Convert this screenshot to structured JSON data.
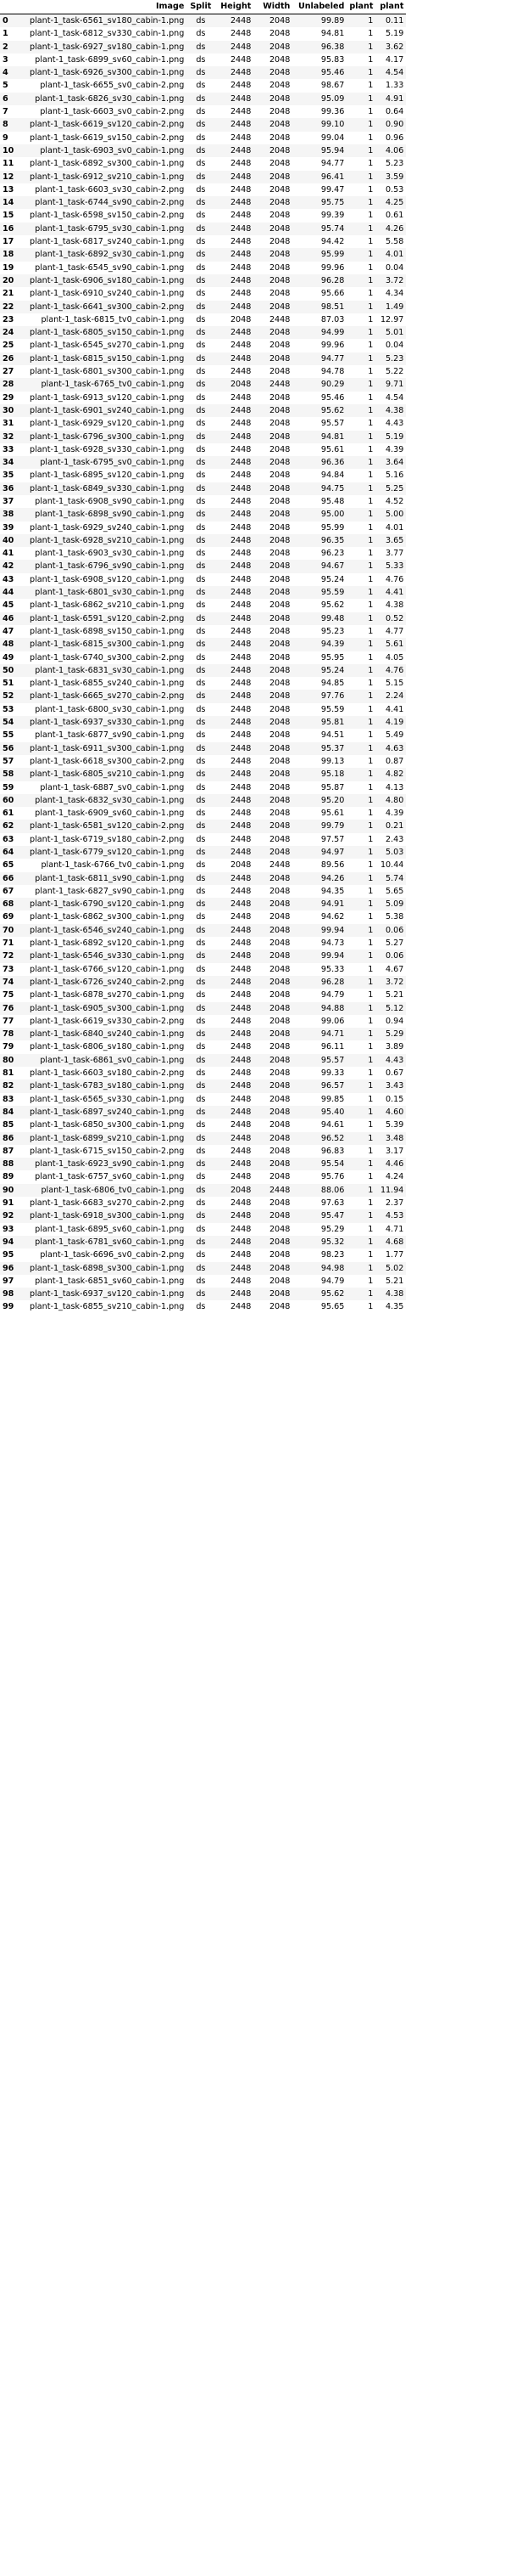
{
  "columns": [
    "",
    "Image",
    "Split",
    "Height",
    "Width",
    "Unlabeled",
    "plant",
    "plant"
  ],
  "rows": [
    [
      "0",
      "plant-1_task-6561_sv180_cabin-1.png",
      "ds",
      "2448",
      "2048",
      "99.89",
      "1",
      "0.11"
    ],
    [
      "1",
      "plant-1_task-6812_sv330_cabin-1.png",
      "ds",
      "2448",
      "2048",
      "94.81",
      "1",
      "5.19"
    ],
    [
      "2",
      "plant-1_task-6927_sv180_cabin-1.png",
      "ds",
      "2448",
      "2048",
      "96.38",
      "1",
      "3.62"
    ],
    [
      "3",
      "plant-1_task-6899_sv60_cabin-1.png",
      "ds",
      "2448",
      "2048",
      "95.83",
      "1",
      "4.17"
    ],
    [
      "4",
      "plant-1_task-6926_sv300_cabin-1.png",
      "ds",
      "2448",
      "2048",
      "95.46",
      "1",
      "4.54"
    ],
    [
      "5",
      "plant-1_task-6655_sv0_cabin-2.png",
      "ds",
      "2448",
      "2048",
      "98.67",
      "1",
      "1.33"
    ],
    [
      "6",
      "plant-1_task-6826_sv30_cabin-1.png",
      "ds",
      "2448",
      "2048",
      "95.09",
      "1",
      "4.91"
    ],
    [
      "7",
      "plant-1_task-6603_sv0_cabin-2.png",
      "ds",
      "2448",
      "2048",
      "99.36",
      "1",
      "0.64"
    ],
    [
      "8",
      "plant-1_task-6619_sv120_cabin-2.png",
      "ds",
      "2448",
      "2048",
      "99.10",
      "1",
      "0.90"
    ],
    [
      "9",
      "plant-1_task-6619_sv150_cabin-2.png",
      "ds",
      "2448",
      "2048",
      "99.04",
      "1",
      "0.96"
    ],
    [
      "10",
      "plant-1_task-6903_sv0_cabin-1.png",
      "ds",
      "2448",
      "2048",
      "95.94",
      "1",
      "4.06"
    ],
    [
      "11",
      "plant-1_task-6892_sv300_cabin-1.png",
      "ds",
      "2448",
      "2048",
      "94.77",
      "1",
      "5.23"
    ],
    [
      "12",
      "plant-1_task-6912_sv210_cabin-1.png",
      "ds",
      "2448",
      "2048",
      "96.41",
      "1",
      "3.59"
    ],
    [
      "13",
      "plant-1_task-6603_sv30_cabin-2.png",
      "ds",
      "2448",
      "2048",
      "99.47",
      "1",
      "0.53"
    ],
    [
      "14",
      "plant-1_task-6744_sv90_cabin-2.png",
      "ds",
      "2448",
      "2048",
      "95.75",
      "1",
      "4.25"
    ],
    [
      "15",
      "plant-1_task-6598_sv150_cabin-2.png",
      "ds",
      "2448",
      "2048",
      "99.39",
      "1",
      "0.61"
    ],
    [
      "16",
      "plant-1_task-6795_sv30_cabin-1.png",
      "ds",
      "2448",
      "2048",
      "95.74",
      "1",
      "4.26"
    ],
    [
      "17",
      "plant-1_task-6817_sv240_cabin-1.png",
      "ds",
      "2448",
      "2048",
      "94.42",
      "1",
      "5.58"
    ],
    [
      "18",
      "plant-1_task-6892_sv30_cabin-1.png",
      "ds",
      "2448",
      "2048",
      "95.99",
      "1",
      "4.01"
    ],
    [
      "19",
      "plant-1_task-6545_sv90_cabin-1.png",
      "ds",
      "2448",
      "2048",
      "99.96",
      "1",
      "0.04"
    ],
    [
      "20",
      "plant-1_task-6906_sv180_cabin-1.png",
      "ds",
      "2448",
      "2048",
      "96.28",
      "1",
      "3.72"
    ],
    [
      "21",
      "plant-1_task-6910_sv240_cabin-1.png",
      "ds",
      "2448",
      "2048",
      "95.66",
      "1",
      "4.34"
    ],
    [
      "22",
      "plant-1_task-6641_sv300_cabin-2.png",
      "ds",
      "2448",
      "2048",
      "98.51",
      "1",
      "1.49"
    ],
    [
      "23",
      "plant-1_task-6815_tv0_cabin-1.png",
      "ds",
      "2048",
      "2448",
      "87.03",
      "1",
      "12.97"
    ],
    [
      "24",
      "plant-1_task-6805_sv150_cabin-1.png",
      "ds",
      "2448",
      "2048",
      "94.99",
      "1",
      "5.01"
    ],
    [
      "25",
      "plant-1_task-6545_sv270_cabin-1.png",
      "ds",
      "2448",
      "2048",
      "99.96",
      "1",
      "0.04"
    ],
    [
      "26",
      "plant-1_task-6815_sv150_cabin-1.png",
      "ds",
      "2448",
      "2048",
      "94.77",
      "1",
      "5.23"
    ],
    [
      "27",
      "plant-1_task-6801_sv300_cabin-1.png",
      "ds",
      "2448",
      "2048",
      "94.78",
      "1",
      "5.22"
    ],
    [
      "28",
      "plant-1_task-6765_tv0_cabin-1.png",
      "ds",
      "2048",
      "2448",
      "90.29",
      "1",
      "9.71"
    ],
    [
      "29",
      "plant-1_task-6913_sv120_cabin-1.png",
      "ds",
      "2448",
      "2048",
      "95.46",
      "1",
      "4.54"
    ],
    [
      "30",
      "plant-1_task-6901_sv240_cabin-1.png",
      "ds",
      "2448",
      "2048",
      "95.62",
      "1",
      "4.38"
    ],
    [
      "31",
      "plant-1_task-6929_sv120_cabin-1.png",
      "ds",
      "2448",
      "2048",
      "95.57",
      "1",
      "4.43"
    ],
    [
      "32",
      "plant-1_task-6796_sv300_cabin-1.png",
      "ds",
      "2448",
      "2048",
      "94.81",
      "1",
      "5.19"
    ],
    [
      "33",
      "plant-1_task-6928_sv330_cabin-1.png",
      "ds",
      "2448",
      "2048",
      "95.61",
      "1",
      "4.39"
    ],
    [
      "34",
      "plant-1_task-6795_sv0_cabin-1.png",
      "ds",
      "2448",
      "2048",
      "96.36",
      "1",
      "3.64"
    ],
    [
      "35",
      "plant-1_task-6895_sv120_cabin-1.png",
      "ds",
      "2448",
      "2048",
      "94.84",
      "1",
      "5.16"
    ],
    [
      "36",
      "plant-1_task-6849_sv330_cabin-1.png",
      "ds",
      "2448",
      "2048",
      "94.75",
      "1",
      "5.25"
    ],
    [
      "37",
      "plant-1_task-6908_sv90_cabin-1.png",
      "ds",
      "2448",
      "2048",
      "95.48",
      "1",
      "4.52"
    ],
    [
      "38",
      "plant-1_task-6898_sv90_cabin-1.png",
      "ds",
      "2448",
      "2048",
      "95.00",
      "1",
      "5.00"
    ],
    [
      "39",
      "plant-1_task-6929_sv240_cabin-1.png",
      "ds",
      "2448",
      "2048",
      "95.99",
      "1",
      "4.01"
    ],
    [
      "40",
      "plant-1_task-6928_sv210_cabin-1.png",
      "ds",
      "2448",
      "2048",
      "96.35",
      "1",
      "3.65"
    ],
    [
      "41",
      "plant-1_task-6903_sv30_cabin-1.png",
      "ds",
      "2448",
      "2048",
      "96.23",
      "1",
      "3.77"
    ],
    [
      "42",
      "plant-1_task-6796_sv90_cabin-1.png",
      "ds",
      "2448",
      "2048",
      "94.67",
      "1",
      "5.33"
    ],
    [
      "43",
      "plant-1_task-6908_sv120_cabin-1.png",
      "ds",
      "2448",
      "2048",
      "95.24",
      "1",
      "4.76"
    ],
    [
      "44",
      "plant-1_task-6801_sv30_cabin-1.png",
      "ds",
      "2448",
      "2048",
      "95.59",
      "1",
      "4.41"
    ],
    [
      "45",
      "plant-1_task-6862_sv210_cabin-1.png",
      "ds",
      "2448",
      "2048",
      "95.62",
      "1",
      "4.38"
    ],
    [
      "46",
      "plant-1_task-6591_sv120_cabin-2.png",
      "ds",
      "2448",
      "2048",
      "99.48",
      "1",
      "0.52"
    ],
    [
      "47",
      "plant-1_task-6898_sv150_cabin-1.png",
      "ds",
      "2448",
      "2048",
      "95.23",
      "1",
      "4.77"
    ],
    [
      "48",
      "plant-1_task-6815_sv300_cabin-1.png",
      "ds",
      "2448",
      "2048",
      "94.39",
      "1",
      "5.61"
    ],
    [
      "49",
      "plant-1_task-6740_sv300_cabin-2.png",
      "ds",
      "2448",
      "2048",
      "95.95",
      "1",
      "4.05"
    ],
    [
      "50",
      "plant-1_task-6831_sv30_cabin-1.png",
      "ds",
      "2448",
      "2048",
      "95.24",
      "1",
      "4.76"
    ],
    [
      "51",
      "plant-1_task-6855_sv240_cabin-1.png",
      "ds",
      "2448",
      "2048",
      "94.85",
      "1",
      "5.15"
    ],
    [
      "52",
      "plant-1_task-6665_sv270_cabin-2.png",
      "ds",
      "2448",
      "2048",
      "97.76",
      "1",
      "2.24"
    ],
    [
      "53",
      "plant-1_task-6800_sv30_cabin-1.png",
      "ds",
      "2448",
      "2048",
      "95.59",
      "1",
      "4.41"
    ],
    [
      "54",
      "plant-1_task-6937_sv330_cabin-1.png",
      "ds",
      "2448",
      "2048",
      "95.81",
      "1",
      "4.19"
    ],
    [
      "55",
      "plant-1_task-6877_sv90_cabin-1.png",
      "ds",
      "2448",
      "2048",
      "94.51",
      "1",
      "5.49"
    ],
    [
      "56",
      "plant-1_task-6911_sv300_cabin-1.png",
      "ds",
      "2448",
      "2048",
      "95.37",
      "1",
      "4.63"
    ],
    [
      "57",
      "plant-1_task-6618_sv300_cabin-2.png",
      "ds",
      "2448",
      "2048",
      "99.13",
      "1",
      "0.87"
    ],
    [
      "58",
      "plant-1_task-6805_sv210_cabin-1.png",
      "ds",
      "2448",
      "2048",
      "95.18",
      "1",
      "4.82"
    ],
    [
      "59",
      "plant-1_task-6887_sv0_cabin-1.png",
      "ds",
      "2448",
      "2048",
      "95.87",
      "1",
      "4.13"
    ],
    [
      "60",
      "plant-1_task-6832_sv30_cabin-1.png",
      "ds",
      "2448",
      "2048",
      "95.20",
      "1",
      "4.80"
    ],
    [
      "61",
      "plant-1_task-6909_sv60_cabin-1.png",
      "ds",
      "2448",
      "2048",
      "95.61",
      "1",
      "4.39"
    ],
    [
      "62",
      "plant-1_task-6581_sv120_cabin-2.png",
      "ds",
      "2448",
      "2048",
      "99.79",
      "1",
      "0.21"
    ],
    [
      "63",
      "plant-1_task-6719_sv180_cabin-2.png",
      "ds",
      "2448",
      "2048",
      "97.57",
      "1",
      "2.43"
    ],
    [
      "64",
      "plant-1_task-6779_sv120_cabin-1.png",
      "ds",
      "2448",
      "2048",
      "94.97",
      "1",
      "5.03"
    ],
    [
      "65",
      "plant-1_task-6766_tv0_cabin-1.png",
      "ds",
      "2048",
      "2448",
      "89.56",
      "1",
      "10.44"
    ],
    [
      "66",
      "plant-1_task-6811_sv90_cabin-1.png",
      "ds",
      "2448",
      "2048",
      "94.26",
      "1",
      "5.74"
    ],
    [
      "67",
      "plant-1_task-6827_sv90_cabin-1.png",
      "ds",
      "2448",
      "2048",
      "94.35",
      "1",
      "5.65"
    ],
    [
      "68",
      "plant-1_task-6790_sv120_cabin-1.png",
      "ds",
      "2448",
      "2048",
      "94.91",
      "1",
      "5.09"
    ],
    [
      "69",
      "plant-1_task-6862_sv300_cabin-1.png",
      "ds",
      "2448",
      "2048",
      "94.62",
      "1",
      "5.38"
    ],
    [
      "70",
      "plant-1_task-6546_sv240_cabin-1.png",
      "ds",
      "2448",
      "2048",
      "99.94",
      "1",
      "0.06"
    ],
    [
      "71",
      "plant-1_task-6892_sv120_cabin-1.png",
      "ds",
      "2448",
      "2048",
      "94.73",
      "1",
      "5.27"
    ],
    [
      "72",
      "plant-1_task-6546_sv330_cabin-1.png",
      "ds",
      "2448",
      "2048",
      "99.94",
      "1",
      "0.06"
    ],
    [
      "73",
      "plant-1_task-6766_sv120_cabin-1.png",
      "ds",
      "2448",
      "2048",
      "95.33",
      "1",
      "4.67"
    ],
    [
      "74",
      "plant-1_task-6726_sv240_cabin-2.png",
      "ds",
      "2448",
      "2048",
      "96.28",
      "1",
      "3.72"
    ],
    [
      "75",
      "plant-1_task-6878_sv270_cabin-1.png",
      "ds",
      "2448",
      "2048",
      "94.79",
      "1",
      "5.21"
    ],
    [
      "76",
      "plant-1_task-6905_sv300_cabin-1.png",
      "ds",
      "2448",
      "2048",
      "94.88",
      "1",
      "5.12"
    ],
    [
      "77",
      "plant-1_task-6619_sv330_cabin-2.png",
      "ds",
      "2448",
      "2048",
      "99.06",
      "1",
      "0.94"
    ],
    [
      "78",
      "plant-1_task-6840_sv240_cabin-1.png",
      "ds",
      "2448",
      "2048",
      "94.71",
      "1",
      "5.29"
    ],
    [
      "79",
      "plant-1_task-6806_sv180_cabin-1.png",
      "ds",
      "2448",
      "2048",
      "96.11",
      "1",
      "3.89"
    ],
    [
      "80",
      "plant-1_task-6861_sv0_cabin-1.png",
      "ds",
      "2448",
      "2048",
      "95.57",
      "1",
      "4.43"
    ],
    [
      "81",
      "plant-1_task-6603_sv180_cabin-2.png",
      "ds",
      "2448",
      "2048",
      "99.33",
      "1",
      "0.67"
    ],
    [
      "82",
      "plant-1_task-6783_sv180_cabin-1.png",
      "ds",
      "2448",
      "2048",
      "96.57",
      "1",
      "3.43"
    ],
    [
      "83",
      "plant-1_task-6565_sv330_cabin-1.png",
      "ds",
      "2448",
      "2048",
      "99.85",
      "1",
      "0.15"
    ],
    [
      "84",
      "plant-1_task-6897_sv240_cabin-1.png",
      "ds",
      "2448",
      "2048",
      "95.40",
      "1",
      "4.60"
    ],
    [
      "85",
      "plant-1_task-6850_sv300_cabin-1.png",
      "ds",
      "2448",
      "2048",
      "94.61",
      "1",
      "5.39"
    ],
    [
      "86",
      "plant-1_task-6899_sv210_cabin-1.png",
      "ds",
      "2448",
      "2048",
      "96.52",
      "1",
      "3.48"
    ],
    [
      "87",
      "plant-1_task-6715_sv150_cabin-2.png",
      "ds",
      "2448",
      "2048",
      "96.83",
      "1",
      "3.17"
    ],
    [
      "88",
      "plant-1_task-6923_sv90_cabin-1.png",
      "ds",
      "2448",
      "2048",
      "95.54",
      "1",
      "4.46"
    ],
    [
      "89",
      "plant-1_task-6757_sv60_cabin-1.png",
      "ds",
      "2448",
      "2048",
      "95.76",
      "1",
      "4.24"
    ],
    [
      "90",
      "plant-1_task-6806_tv0_cabin-1.png",
      "ds",
      "2048",
      "2448",
      "88.06",
      "1",
      "11.94"
    ],
    [
      "91",
      "plant-1_task-6683_sv270_cabin-2.png",
      "ds",
      "2448",
      "2048",
      "97.63",
      "1",
      "2.37"
    ],
    [
      "92",
      "plant-1_task-6918_sv300_cabin-1.png",
      "ds",
      "2448",
      "2048",
      "95.47",
      "1",
      "4.53"
    ],
    [
      "93",
      "plant-1_task-6895_sv60_cabin-1.png",
      "ds",
      "2448",
      "2048",
      "95.29",
      "1",
      "4.71"
    ],
    [
      "94",
      "plant-1_task-6781_sv60_cabin-1.png",
      "ds",
      "2448",
      "2048",
      "95.32",
      "1",
      "4.68"
    ],
    [
      "95",
      "plant-1_task-6696_sv0_cabin-2.png",
      "ds",
      "2448",
      "2048",
      "98.23",
      "1",
      "1.77"
    ],
    [
      "96",
      "plant-1_task-6898_sv300_cabin-1.png",
      "ds",
      "2448",
      "2048",
      "94.98",
      "1",
      "5.02"
    ],
    [
      "97",
      "plant-1_task-6851_sv60_cabin-1.png",
      "ds",
      "2448",
      "2048",
      "94.79",
      "1",
      "5.21"
    ],
    [
      "98",
      "plant-1_task-6937_sv120_cabin-1.png",
      "ds",
      "2448",
      "2048",
      "95.62",
      "1",
      "4.38"
    ],
    [
      "99",
      "plant-1_task-6855_sv210_cabin-1.png",
      "ds",
      "2448",
      "2048",
      "95.65",
      "1",
      "4.35"
    ]
  ]
}
